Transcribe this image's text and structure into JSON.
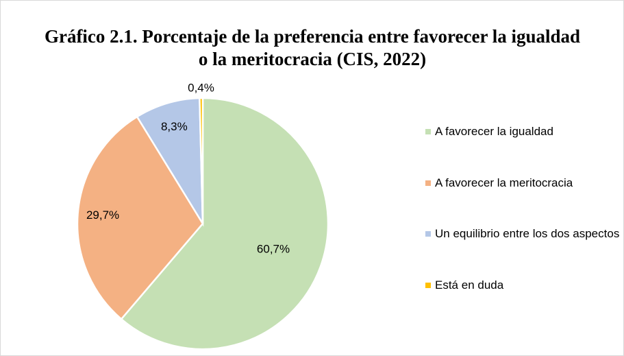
{
  "chart_data": {
    "type": "pie",
    "title": "Gráfico 2.1. Porcentaje de la preferencia entre favorecer la igualdad o la meritocracia (CIS, 2022)",
    "categories": [
      "A favorecer la igualdad",
      "A favorecer la meritocracia",
      "Un equilibrio entre los dos aspectos",
      "Está en duda"
    ],
    "values": [
      60.7,
      29.7,
      8.3,
      0.4
    ],
    "value_labels": [
      "60,7%",
      "29,7%",
      "8,3%",
      "0,4%"
    ],
    "colors": [
      "#c5e0b4",
      "#f4b183",
      "#b4c7e7",
      "#ffc000"
    ],
    "legend": "right"
  }
}
